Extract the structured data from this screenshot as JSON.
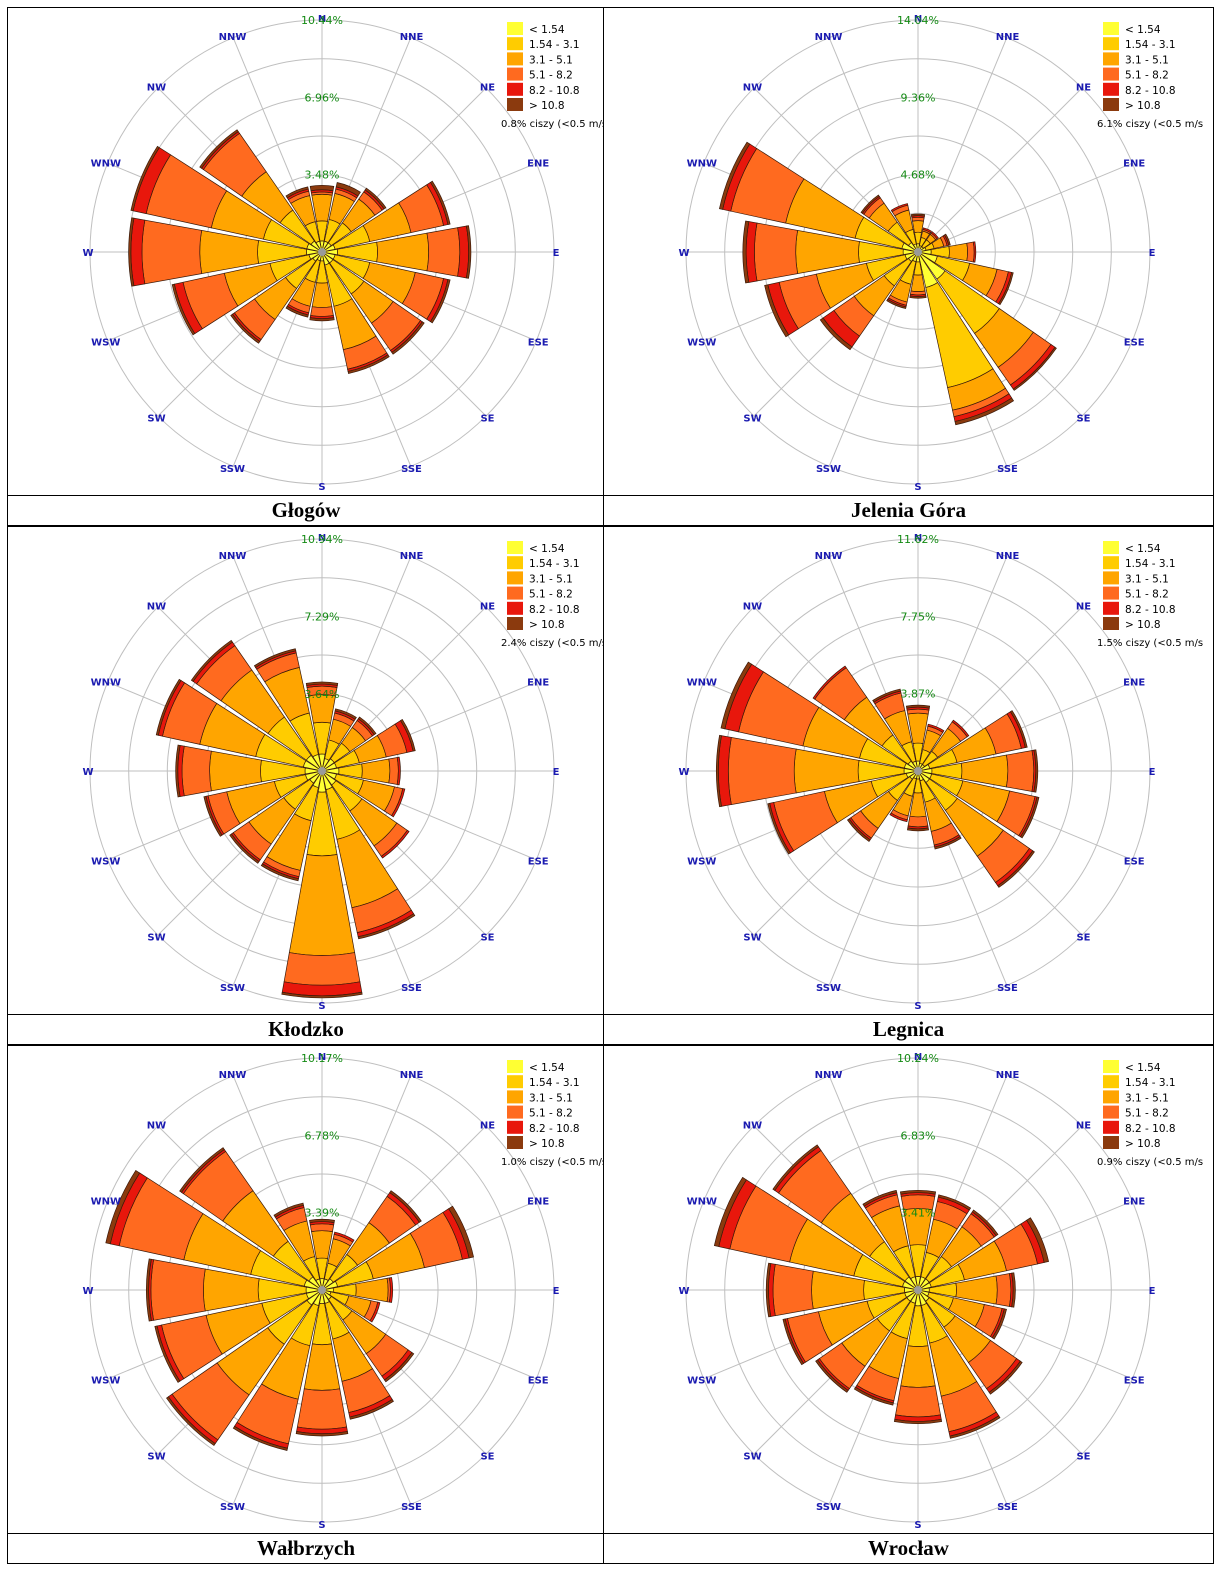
{
  "legend_bins": [
    "< 1.54",
    "1.54 - 3.1",
    "3.1 - 5.1",
    "5.1 - 8.2",
    "8.2 - 10.8",
    "> 10.8"
  ],
  "legend_colors": [
    "#FFFF33",
    "#FFCC00",
    "#FFA500",
    "#FF6A1F",
    "#E8170C",
    "#8B3A0E"
  ],
  "directions": [
    "N",
    "NNE",
    "NE",
    "ENE",
    "E",
    "ESE",
    "SE",
    "SSE",
    "S",
    "SSW",
    "SW",
    "WSW",
    "W",
    "WNW",
    "NW",
    "NNW"
  ],
  "colors": {
    "grid": "#BFBFBF",
    "direction_label": "#1A1AB0",
    "ring_label": "#138A13",
    "outline": "#3A1A0A"
  },
  "chart_data": [
    {
      "type": "windrose",
      "caption": "Głogów",
      "calm_text": "0.8% ciszy (<0.5 m/s",
      "ring_values": [
        3.48,
        6.96,
        10.44
      ],
      "ring_labels": [
        "3.48%",
        "6.96%",
        "10.44%"
      ],
      "rmax": 10.44,
      "series": [
        [
          0.5,
          1.4,
          2.6,
          2.7,
          2.8,
          3.0
        ],
        [
          0.5,
          1.5,
          2.7,
          2.9,
          3.0,
          3.2
        ],
        [
          0.5,
          1.6,
          2.9,
          3.3,
          3.4,
          3.5
        ],
        [
          0.6,
          2.2,
          4.1,
          5.6,
          5.8,
          5.9
        ],
        [
          0.7,
          2.5,
          4.8,
          6.2,
          6.6,
          6.7
        ],
        [
          0.6,
          2.2,
          4.3,
          5.6,
          5.8,
          5.9
        ],
        [
          0.6,
          2.3,
          3.9,
          5.4,
          5.5,
          5.6
        ],
        [
          0.6,
          2.5,
          4.5,
          5.4,
          5.5,
          5.6
        ],
        [
          0.4,
          1.4,
          2.5,
          2.9,
          3.0,
          3.1
        ],
        [
          0.4,
          1.4,
          2.5,
          2.8,
          2.9,
          3.0
        ],
        [
          0.5,
          2.0,
          3.7,
          4.8,
          4.9,
          5.0
        ],
        [
          0.6,
          2.4,
          4.5,
          6.4,
          6.8,
          6.9
        ],
        [
          0.7,
          2.9,
          5.5,
          8.1,
          8.6,
          8.7
        ],
        [
          0.7,
          2.7,
          5.1,
          8.1,
          8.7,
          8.8
        ],
        [
          0.6,
          2.3,
          4.4,
          6.5,
          6.6,
          6.7
        ],
        [
          0.5,
          1.4,
          2.6,
          2.8,
          2.9,
          3.0
        ]
      ]
    },
    {
      "type": "windrose",
      "caption": "Jelenia Góra",
      "calm_text": "6.1% ciszy (<0.5 m/s",
      "ring_values": [
        4.68,
        9.36,
        14.04
      ],
      "ring_labels": [
        "4.68%",
        "9.36%",
        "14.04%"
      ],
      "rmax": 14.04,
      "series": [
        [
          0.5,
          1.2,
          1.9,
          2.1,
          2.2,
          2.3
        ],
        [
          0.4,
          0.9,
          1.3,
          1.4,
          1.5,
          1.5
        ],
        [
          0.4,
          0.9,
          1.3,
          1.4,
          1.5,
          1.5
        ],
        [
          0.5,
          1.0,
          1.6,
          1.8,
          1.9,
          2.0
        ],
        [
          0.8,
          1.9,
          3.0,
          3.4,
          3.5,
          3.5
        ],
        [
          1.2,
          3.2,
          4.9,
          5.6,
          5.8,
          5.9
        ],
        [
          2.0,
          6.0,
          8.5,
          9.8,
          10.1,
          10.2
        ],
        [
          2.2,
          8.4,
          9.8,
          10.2,
          10.5,
          10.7
        ],
        [
          0.6,
          1.4,
          2.4,
          2.6,
          2.7,
          2.8
        ],
        [
          0.6,
          2.0,
          3.1,
          3.3,
          3.4,
          3.5
        ],
        [
          0.7,
          2.5,
          4.7,
          6.2,
          7.0,
          7.2
        ],
        [
          0.8,
          3.2,
          6.3,
          8.6,
          9.3,
          9.5
        ],
        [
          0.9,
          3.6,
          7.4,
          9.9,
          10.4,
          10.6
        ],
        [
          1.0,
          3.9,
          8.2,
          11.6,
          12.1,
          12.3
        ],
        [
          0.7,
          2.2,
          3.6,
          4.0,
          4.1,
          4.2
        ],
        [
          0.5,
          1.4,
          2.6,
          2.9,
          3.0,
          3.0
        ]
      ]
    },
    {
      "type": "windrose",
      "caption": "Kłodzko",
      "calm_text": "2.4% ciszy (<0.5 m/s",
      "ring_values": [
        3.64,
        7.29,
        10.94
      ],
      "ring_labels": [
        "3.64%",
        "7.29%",
        "10.94%"
      ],
      "rmax": 10.94,
      "series": [
        [
          0.8,
          2.3,
          3.6,
          4.0,
          4.1,
          4.2
        ],
        [
          0.6,
          1.5,
          2.5,
          2.8,
          2.9,
          3.0
        ],
        [
          0.7,
          1.6,
          2.5,
          2.9,
          3.0,
          3.1
        ],
        [
          0.7,
          1.8,
          3.1,
          4.1,
          4.4,
          4.5
        ],
        [
          0.8,
          1.9,
          3.2,
          3.6,
          3.7,
          3.7
        ],
        [
          0.7,
          2.0,
          3.5,
          3.9,
          4.0,
          4.0
        ],
        [
          0.8,
          2.3,
          4.3,
          4.9,
          5.0,
          5.0
        ],
        [
          0.9,
          3.3,
          6.6,
          7.8,
          8.0,
          8.1
        ],
        [
          1.0,
          4.0,
          8.7,
          10.1,
          10.6,
          10.7
        ],
        [
          0.8,
          2.4,
          4.8,
          5.1,
          5.2,
          5.3
        ],
        [
          0.7,
          2.2,
          4.2,
          5.1,
          5.2,
          5.3
        ],
        [
          0.8,
          2.3,
          4.6,
          5.5,
          5.6,
          5.7
        ],
        [
          0.8,
          2.9,
          5.3,
          6.6,
          6.8,
          6.9
        ],
        [
          0.9,
          3.2,
          5.9,
          7.7,
          7.9,
          8.0
        ],
        [
          0.9,
          3.1,
          5.8,
          7.2,
          7.4,
          7.5
        ],
        [
          0.8,
          2.8,
          5.0,
          5.7,
          5.8,
          5.9
        ]
      ]
    },
    {
      "type": "windrose",
      "caption": "Legnica",
      "calm_text": "1.5% ciszy (<0.5 m/s",
      "ring_values": [
        3.87,
        7.75,
        11.62
      ],
      "ring_labels": [
        "3.87%",
        "7.75%",
        "11.62%"
      ],
      "rmax": 11.62,
      "series": [
        [
          0.5,
          1.4,
          2.9,
          3.1,
          3.2,
          3.3
        ],
        [
          0.4,
          1.1,
          2.1,
          2.3,
          2.4,
          2.4
        ],
        [
          0.4,
          1.2,
          2.6,
          3.0,
          3.1,
          3.1
        ],
        [
          0.6,
          2.0,
          4.0,
          5.3,
          5.5,
          5.6
        ],
        [
          0.7,
          2.2,
          4.5,
          5.8,
          5.9,
          6.0
        ],
        [
          0.7,
          2.3,
          4.7,
          6.0,
          6.1,
          6.2
        ],
        [
          0.7,
          2.4,
          5.2,
          6.8,
          7.0,
          7.1
        ],
        [
          0.5,
          1.6,
          3.1,
          3.8,
          3.9,
          4.0
        ],
        [
          0.4,
          1.1,
          2.3,
          2.8,
          2.9,
          3.0
        ],
        [
          0.4,
          1.3,
          2.3,
          2.5,
          2.6,
          2.6
        ],
        [
          0.5,
          1.8,
          3.5,
          4.1,
          4.2,
          4.3
        ],
        [
          0.6,
          2.4,
          4.8,
          7.4,
          7.6,
          7.7
        ],
        [
          0.7,
          3.0,
          6.2,
          9.5,
          10.0,
          10.1
        ],
        [
          0.7,
          3.0,
          5.9,
          9.2,
          9.9,
          10.1
        ],
        [
          0.6,
          2.2,
          4.5,
          6.3,
          6.4,
          6.4
        ],
        [
          0.5,
          1.5,
          3.1,
          4.0,
          4.1,
          4.2
        ]
      ]
    },
    {
      "type": "windrose",
      "caption": "Wałbrzych",
      "calm_text": "1.0% ciszy (<0.5 m/s",
      "ring_values": [
        3.39,
        6.78,
        10.17
      ],
      "ring_labels": [
        "3.39%",
        "6.78%",
        "10.17%"
      ],
      "rmax": 10.17,
      "series": [
        [
          0.5,
          1.4,
          2.6,
          2.9,
          3.0,
          3.1
        ],
        [
          0.5,
          1.2,
          2.3,
          2.5,
          2.6,
          2.6
        ],
        [
          0.6,
          1.9,
          3.6,
          5.0,
          5.2,
          5.3
        ],
        [
          0.7,
          2.3,
          4.6,
          6.3,
          6.6,
          6.8
        ],
        [
          0.5,
          1.5,
          2.9,
          3.0,
          3.1,
          3.1
        ],
        [
          0.4,
          1.2,
          2.2,
          2.5,
          2.6,
          2.6
        ],
        [
          0.5,
          1.6,
          3.4,
          4.6,
          4.8,
          4.9
        ],
        [
          0.6,
          2.2,
          4.1,
          5.5,
          5.7,
          5.8
        ],
        [
          0.6,
          2.4,
          4.4,
          6.1,
          6.3,
          6.4
        ],
        [
          0.7,
          2.5,
          4.9,
          6.9,
          7.1,
          7.2
        ],
        [
          0.8,
          2.9,
          5.6,
          8.0,
          8.2,
          8.3
        ],
        [
          0.7,
          2.7,
          5.2,
          7.2,
          7.4,
          7.5
        ],
        [
          0.7,
          2.8,
          5.2,
          7.5,
          7.6,
          7.7
        ],
        [
          0.8,
          3.2,
          6.2,
          9.1,
          9.5,
          9.7
        ],
        [
          0.7,
          2.6,
          5.3,
          7.4,
          7.5,
          7.6
        ],
        [
          0.5,
          1.5,
          3.1,
          3.7,
          3.8,
          3.9
        ]
      ]
    },
    {
      "type": "windrose",
      "caption": "Wrocław",
      "calm_text": "0.9% ciszy (<0.5 m/s",
      "ring_values": [
        3.41,
        6.83,
        10.24
      ],
      "ring_labels": [
        "3.41%",
        "6.83%",
        "10.24%"
      ],
      "rmax": 10.24,
      "series": [
        [
          0.6,
          2.0,
          3.6,
          4.2,
          4.3,
          4.4
        ],
        [
          0.6,
          1.7,
          3.2,
          4.0,
          4.2,
          4.3
        ],
        [
          0.6,
          1.8,
          3.4,
          4.1,
          4.2,
          4.3
        ],
        [
          0.6,
          2.1,
          4.0,
          5.4,
          5.7,
          5.9
        ],
        [
          0.5,
          1.7,
          3.5,
          4.1,
          4.2,
          4.3
        ],
        [
          0.5,
          1.6,
          3.0,
          3.8,
          3.9,
          4.0
        ],
        [
          0.6,
          2.0,
          3.9,
          5.3,
          5.5,
          5.6
        ],
        [
          0.7,
          2.4,
          4.8,
          6.4,
          6.6,
          6.7
        ],
        [
          0.7,
          2.5,
          4.3,
          5.6,
          5.8,
          5.9
        ],
        [
          0.6,
          2.2,
          4.0,
          5.0,
          5.1,
          5.2
        ],
        [
          0.6,
          2.2,
          4.1,
          5.3,
          5.4,
          5.5
        ],
        [
          0.6,
          2.3,
          4.5,
          5.9,
          6.0,
          6.1
        ],
        [
          0.6,
          2.4,
          4.7,
          6.4,
          6.6,
          6.7
        ],
        [
          0.7,
          2.9,
          5.8,
          8.5,
          9.0,
          9.2
        ],
        [
          0.7,
          2.6,
          5.2,
          7.5,
          7.7,
          7.8
        ],
        [
          0.6,
          2.0,
          3.8,
          4.3,
          4.4,
          4.5
        ]
      ]
    }
  ]
}
